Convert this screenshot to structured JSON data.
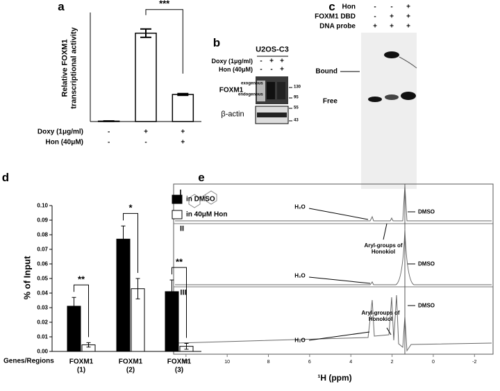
{
  "panel_letters": [
    "a",
    "b",
    "c",
    "d",
    "e"
  ],
  "chart_data": [
    {
      "type": "bar",
      "ylabel": "Relative FOXM1\ntranscriptional activity",
      "categories": [
        null,
        null,
        null
      ],
      "values": [
        1,
        212,
        65
      ],
      "errors": [
        0.5,
        10,
        2
      ],
      "color": "#ffffff",
      "ylim": [
        0,
        250
      ],
      "treatments": [
        {
          "label": "Doxy (1μg/ml)",
          "marks": [
            "-",
            "+",
            "+"
          ]
        },
        {
          "label": "Hon (40μM)",
          "marks": [
            "-",
            "-",
            "+"
          ]
        }
      ],
      "significance": "***"
    },
    {
      "type": "grouped_bar",
      "ylabel": "% of Input",
      "xlabel": "Genes/Regions",
      "categories": [
        "FOXM1\n(1)",
        "FOXM1\n(2)",
        "FOXM1\n(3)"
      ],
      "series": [
        {
          "name": "in DMSO",
          "color": "#000000",
          "values": [
            0.031,
            0.077,
            0.041
          ],
          "errors": [
            0.006,
            0.009,
            0.008
          ]
        },
        {
          "name": "in 40μM Hon",
          "color": "#ffffff",
          "values": [
            0.0045,
            0.043,
            0.0035
          ],
          "errors": [
            0.0015,
            0.007,
            0.002
          ]
        }
      ],
      "ylim": [
        0,
        0.1
      ],
      "yticks": [
        {
          "value": 0,
          "label": "0.00"
        },
        {
          "value": 0.01,
          "label": "0.01"
        },
        {
          "value": 0.02,
          "label": "0.02"
        },
        {
          "value": 0.03,
          "label": "0.03"
        },
        {
          "value": 0.04,
          "label": "0.04"
        },
        {
          "value": 0.05,
          "label": "0.05"
        },
        {
          "value": 0.06,
          "label": "0.06"
        },
        {
          "value": 0.07,
          "label": "0.07"
        },
        {
          "value": 0.08,
          "label": "0.08"
        },
        {
          "value": 0.09,
          "label": "0.09"
        },
        {
          "value": 0.1,
          "label": "0.10"
        }
      ],
      "significance": [
        "**",
        "*",
        "**"
      ]
    },
    {
      "type": "nmr",
      "xlabel": "¹H (ppm)",
      "xlim": [
        12.6,
        -2.9
      ],
      "xticks": [
        12,
        10,
        8,
        6,
        4,
        2,
        0,
        -2
      ],
      "traces": [
        "I",
        "II",
        "III"
      ],
      "annotations": [
        {
          "trace": 0,
          "labels": [
            "H₂O",
            "DMSO",
            "Aryl-groups of\nHonokiol"
          ]
        },
        {
          "trace": 1,
          "labels": [
            "H₂O",
            "DMSO"
          ]
        },
        {
          "trace": 2,
          "labels": [
            "H₂O",
            "DMSO",
            "Aryl-groups of\nHonokiol"
          ]
        }
      ]
    }
  ],
  "blot": {
    "cell_line": "U2OS-C3",
    "treatments": [
      {
        "label": "Doxy (1μg/ml)",
        "marks": [
          "-",
          "+",
          "+"
        ]
      },
      {
        "label": "Hon (40μM)",
        "marks": [
          "-",
          "-",
          "+"
        ]
      }
    ],
    "protein": "FOXM1",
    "exogenous": "exogenous",
    "endogenous": "endogenous",
    "loading": "β-actin",
    "markers": [
      "130",
      "95",
      "55",
      "43"
    ]
  },
  "gel": {
    "treatments": [
      {
        "label": "Hon",
        "marks": [
          "-",
          "-",
          "+"
        ]
      },
      {
        "label": "FOXM1 DBD",
        "marks": [
          "-",
          "+",
          "+"
        ]
      },
      {
        "label": "DNA probe",
        "marks": [
          "+",
          "+",
          "+"
        ]
      }
    ],
    "bound": "Bound",
    "free": "Free"
  }
}
